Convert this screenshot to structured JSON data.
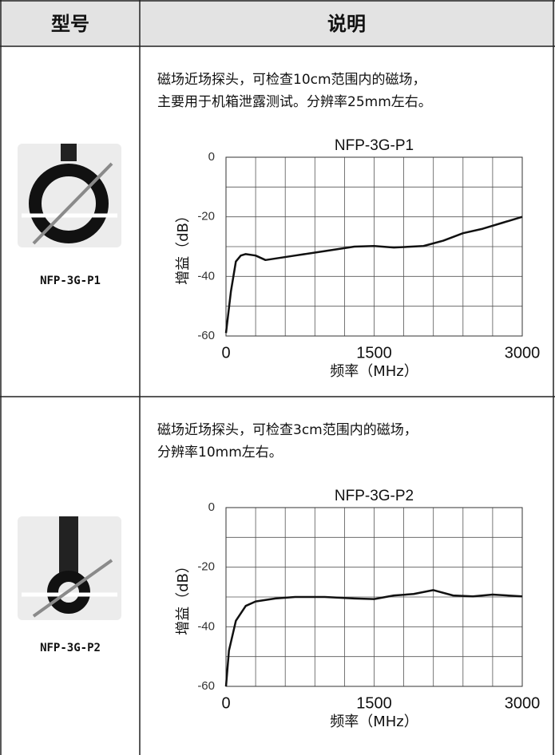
{
  "header": {
    "model": "型号",
    "description": "说明"
  },
  "rows": [
    {
      "model": "NFP-3G-P1",
      "description": [
        "磁场近场探头，可检查10cm范围内的磁场，",
        "主要用于机箱泄露测试。分辨率25mm左右。"
      ],
      "chart_data": {
        "type": "line",
        "title": "NFP-3G-P1",
        "x_label": "频率（MHz）",
        "y_label": "增益（dB）",
        "x": [
          0,
          50,
          100,
          150,
          200,
          300,
          400,
          500,
          700,
          1000,
          1300,
          1500,
          1700,
          2000,
          2200,
          2400,
          2600,
          2800,
          3000
        ],
        "series": [
          {
            "color": "#111111",
            "values": [
              -59,
              -45,
              -35,
              -33,
              -32.5,
              -33,
              -34.5,
              -34,
              -33,
              -31.5,
              -30,
              -29.8,
              -30.3,
              -29.8,
              -28,
              -25.5,
              -24,
              -22,
              -20
            ]
          }
        ],
        "xlim": [
          0,
          3000
        ],
        "ylim": [
          -60,
          0
        ],
        "xticks": [
          0,
          1500,
          3000
        ],
        "yticks": [
          0,
          -20,
          -40,
          -60
        ],
        "xgrid": [
          0,
          300,
          600,
          900,
          1200,
          1500,
          1800,
          2100,
          2400,
          2700,
          3000
        ],
        "ygrid": [
          0,
          -10,
          -20,
          -30,
          -40,
          -50,
          -60
        ],
        "grid": true
      }
    },
    {
      "model": "NFP-3G-P2",
      "description": [
        "磁场近场探头，可检查3cm范围内的磁场，",
        "分辨率10mm左右。"
      ],
      "chart_data": {
        "type": "line",
        "title": "NFP-3G-P2",
        "x_label": "频率（MHz）",
        "y_label": "增益（dB）",
        "x": [
          0,
          30,
          100,
          200,
          300,
          500,
          700,
          1000,
          1300,
          1500,
          1700,
          1900,
          2100,
          2300,
          2500,
          2700,
          3000
        ],
        "series": [
          {
            "color": "#111111",
            "values": [
              -60,
              -48,
              -38,
              -33,
              -31.5,
              -30.5,
              -30,
              -30,
              -30.5,
              -30.7,
              -29.5,
              -29,
              -27.7,
              -29.5,
              -29.8,
              -29.2,
              -29.8
            ]
          }
        ],
        "xlim": [
          0,
          3000
        ],
        "ylim": [
          -60,
          0
        ],
        "xticks": [
          0,
          1500,
          3000
        ],
        "yticks": [
          0,
          -20,
          -40,
          -60
        ],
        "xgrid": [
          0,
          300,
          600,
          900,
          1200,
          1500,
          1800,
          2100,
          2400,
          2700,
          3000
        ],
        "ygrid": [
          0,
          -10,
          -20,
          -30,
          -40,
          -50,
          -60
        ],
        "grid": true
      }
    }
  ]
}
